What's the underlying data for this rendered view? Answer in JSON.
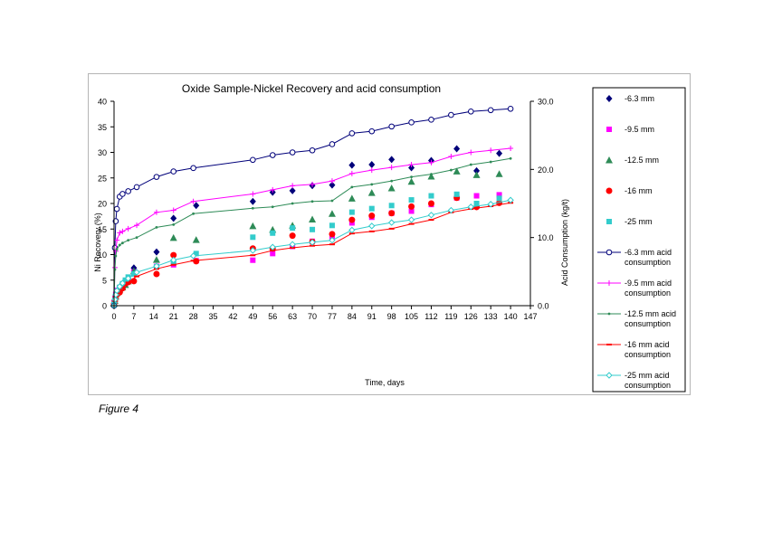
{
  "caption": "Figure 4",
  "chart_data": {
    "type": "scatter",
    "title": "Oxide Sample-Nickel Recovery and acid consumption",
    "xlabel": "Time, days",
    "ylabel": "Ni Recovery (%)",
    "y2label": "Acid Consumption (kg/t)",
    "xlim": [
      0,
      147
    ],
    "ylim": [
      0,
      40
    ],
    "y2lim": [
      0,
      30
    ],
    "x_ticks": [
      "0",
      "7",
      "14",
      "21",
      "28",
      "35",
      "42",
      "49",
      "56",
      "63",
      "70",
      "77",
      "84",
      "91",
      "98",
      "105",
      "112",
      "119",
      "126",
      "133",
      "140",
      "147"
    ],
    "y_ticks": [
      "0",
      "5",
      "10",
      "15",
      "20",
      "25",
      "30",
      "35",
      "40"
    ],
    "y2_ticks": [
      "0.0",
      "10.0",
      "20.0",
      "30.0"
    ],
    "grid": false,
    "legend_position": "right",
    "series": [
      {
        "name": "-6.3 mm",
        "axis": "left",
        "kind": "points",
        "marker": "diamond",
        "color": "#00007a",
        "x": [
          0,
          0.3,
          0.6,
          1,
          2,
          3,
          4,
          5,
          7,
          15,
          21,
          29,
          49,
          56,
          63,
          70,
          77,
          84,
          91,
          98,
          105,
          112,
          121,
          128,
          136
        ],
        "y": [
          0.5,
          1.2,
          2,
          2.8,
          3.4,
          4.2,
          4.8,
          5.2,
          7.4,
          10.5,
          17.1,
          19.6,
          20.4,
          22.2,
          22.5,
          23.5,
          23.6,
          27.5,
          27.6,
          28.6,
          27,
          28.4,
          30.7,
          26.4,
          29.8
        ]
      },
      {
        "name": "-9.5 mm",
        "axis": "left",
        "kind": "points",
        "marker": "square",
        "color": "#ff00ff",
        "x": [
          0,
          0.3,
          0.6,
          1,
          2,
          3,
          4,
          5,
          7,
          15,
          21,
          29,
          49,
          56,
          63,
          70,
          77,
          84,
          91,
          98,
          105,
          112,
          121,
          128,
          136
        ],
        "y": [
          0.6,
          1.4,
          2.2,
          3,
          3.5,
          3.8,
          4.5,
          5,
          6.6,
          7.7,
          8,
          8.8,
          8.9,
          10.2,
          11.6,
          12.6,
          13.2,
          16.2,
          17.3,
          18.1,
          18.5,
          19.8,
          21.1,
          21.5,
          21.7
        ]
      },
      {
        "name": "-12.5 mm",
        "axis": "left",
        "kind": "points",
        "marker": "triangle",
        "color": "#2e8b57",
        "x": [
          0,
          0.3,
          0.6,
          1,
          2,
          3,
          4,
          5,
          7,
          15,
          21,
          29,
          49,
          56,
          63,
          70,
          77,
          84,
          91,
          98,
          105,
          112,
          121,
          128,
          136
        ],
        "y": [
          0.4,
          1,
          1.8,
          2.5,
          3.2,
          3.6,
          4.1,
          4.8,
          6.8,
          9,
          13.3,
          12.9,
          15.6,
          14.9,
          15.7,
          16.9,
          18,
          21,
          22.1,
          23,
          24.3,
          25.3,
          26.3,
          25.6,
          25.8
        ]
      },
      {
        "name": "-16 mm",
        "axis": "left",
        "kind": "points",
        "marker": "circle",
        "color": "#ff0000",
        "x": [
          0,
          0.3,
          0.6,
          1,
          2,
          3,
          4,
          5,
          7,
          15,
          21,
          29,
          49,
          56,
          63,
          70,
          77,
          84,
          91,
          98,
          105,
          112,
          121,
          128,
          136
        ],
        "y": [
          0.3,
          0.9,
          1.6,
          2.2,
          2.6,
          3.4,
          4.3,
          4.6,
          4.8,
          6.2,
          9.9,
          8.7,
          11.2,
          11.2,
          13.7,
          12.5,
          14,
          16.8,
          17.6,
          18.1,
          19.4,
          20,
          21.1,
          19.3,
          20.1
        ]
      },
      {
        "name": "-25 mm",
        "axis": "left",
        "kind": "points",
        "marker": "square",
        "color": "#33cccc",
        "x": [
          0,
          0.3,
          0.6,
          1,
          2,
          3,
          4,
          5,
          7,
          15,
          21,
          29,
          49,
          56,
          63,
          70,
          77,
          84,
          91,
          98,
          105,
          112,
          121,
          128,
          136
        ],
        "y": [
          0.3,
          1.1,
          1.9,
          2.6,
          3.6,
          4.3,
          5,
          5.6,
          6.2,
          7.6,
          8.5,
          10.2,
          13.4,
          14.2,
          15.2,
          14.9,
          15.7,
          18.3,
          19,
          19.6,
          20.7,
          21.5,
          21.8,
          20,
          21
        ]
      },
      {
        "name": "-6.3 mm acid consumption",
        "axis": "right",
        "kind": "line",
        "marker": "open-circle",
        "color": "#00007a",
        "x": [
          0,
          0.3,
          0.6,
          1,
          2,
          3,
          5,
          8,
          15,
          21,
          28,
          49,
          56,
          63,
          70,
          77,
          84,
          91,
          98,
          105,
          112,
          119,
          126,
          133,
          140
        ],
        "y": [
          0,
          8.5,
          12.4,
          14.2,
          16,
          16.4,
          16.8,
          17.4,
          18.9,
          19.7,
          20.2,
          21.4,
          22.1,
          22.5,
          22.8,
          23.7,
          25.3,
          25.6,
          26.3,
          26.9,
          27.3,
          28,
          28.5,
          28.7,
          28.9
        ]
      },
      {
        "name": "-9.5 mm acid consumption",
        "axis": "right",
        "kind": "line",
        "marker": "plus",
        "color": "#ff00ff",
        "x": [
          0,
          0.3,
          0.6,
          1,
          2,
          3,
          5,
          8,
          15,
          21,
          28,
          49,
          56,
          63,
          70,
          77,
          84,
          91,
          98,
          105,
          112,
          119,
          126,
          133,
          140
        ],
        "y": [
          0,
          5.6,
          8,
          9.6,
          10.7,
          10.9,
          11.3,
          11.8,
          13.7,
          14,
          15.3,
          16.4,
          17,
          17.6,
          17.8,
          18.3,
          19.4,
          19.9,
          20.3,
          20.7,
          21,
          21.9,
          22.5,
          22.8,
          23.1
        ]
      },
      {
        "name": "-12.5 mm acid consumption",
        "axis": "right",
        "kind": "line",
        "marker": "small-dot",
        "color": "#2e8b57",
        "x": [
          0,
          0.3,
          0.6,
          1,
          2,
          3,
          5,
          8,
          15,
          21,
          28,
          49,
          56,
          63,
          70,
          77,
          84,
          91,
          98,
          105,
          112,
          119,
          126,
          133,
          140
        ],
        "y": [
          0,
          5.3,
          7.3,
          8.3,
          8.9,
          9.2,
          9.6,
          10,
          11.5,
          11.9,
          13.5,
          14.3,
          14.5,
          15,
          15.3,
          15.4,
          17.4,
          17.8,
          18.3,
          18.9,
          19.3,
          19.9,
          20.7,
          21.1,
          21.6
        ]
      },
      {
        "name": "-16 mm acid consumption",
        "axis": "right",
        "kind": "line",
        "marker": "dash",
        "color": "#ff0000",
        "x": [
          0,
          0.3,
          0.6,
          1,
          2,
          3,
          5,
          8,
          15,
          21,
          28,
          49,
          56,
          63,
          70,
          77,
          84,
          91,
          98,
          105,
          112,
          119,
          126,
          133,
          140
        ],
        "y": [
          0,
          0.7,
          1.3,
          1.8,
          2.3,
          2.7,
          3.4,
          4.3,
          5.4,
          6,
          6.6,
          7.4,
          8.1,
          8.5,
          8.8,
          9,
          10.6,
          10.9,
          11.3,
          12,
          12.6,
          13.7,
          14.2,
          14.6,
          15.1
        ]
      },
      {
        "name": "-25 mm acid consumption",
        "axis": "right",
        "kind": "line",
        "marker": "open-diamond",
        "color": "#33cccc",
        "x": [
          0,
          0.3,
          0.6,
          1,
          2,
          3,
          5,
          8,
          15,
          21,
          28,
          49,
          56,
          63,
          70,
          77,
          84,
          91,
          98,
          105,
          112,
          119,
          126,
          133,
          140
        ],
        "y": [
          0,
          0.9,
          1.6,
          2.2,
          2.8,
          3.3,
          4,
          4.9,
          5.8,
          6.7,
          7.3,
          8.1,
          8.6,
          9,
          9.3,
          9.6,
          11.1,
          11.7,
          12.2,
          12.6,
          13.3,
          14,
          14.5,
          14.9,
          15.5
        ]
      }
    ]
  }
}
